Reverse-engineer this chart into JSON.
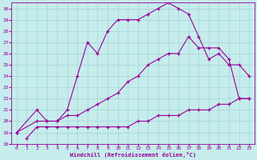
{
  "xlabel": "Windchill (Refroidissement éolien,°C)",
  "bg_color": "#c6ecec",
  "grid_color": "#a8d8d8",
  "line_color": "#990099",
  "xlim": [
    -0.5,
    23.5
  ],
  "ylim": [
    18,
    30.5
  ],
  "xticks": [
    0,
    1,
    2,
    3,
    4,
    5,
    6,
    7,
    8,
    9,
    10,
    11,
    12,
    13,
    14,
    15,
    16,
    17,
    18,
    19,
    20,
    21,
    22,
    23
  ],
  "yticks": [
    18,
    19,
    20,
    21,
    22,
    23,
    24,
    25,
    26,
    27,
    28,
    29,
    30
  ],
  "curve1_x": [
    0,
    2,
    3,
    4,
    5,
    6,
    7,
    8,
    9,
    10,
    11,
    12,
    13,
    14,
    15,
    16,
    17,
    18,
    19,
    20,
    21,
    22,
    23
  ],
  "curve1_y": [
    19.0,
    21.0,
    20.0,
    20.0,
    21.0,
    24.0,
    27.0,
    26.0,
    28.0,
    29.0,
    29.0,
    29.0,
    29.5,
    30.0,
    30.5,
    30.0,
    29.5,
    27.5,
    25.5,
    26.0,
    25.0,
    25.0,
    24.0
  ],
  "curve2_x": [
    0,
    2,
    3,
    4,
    5,
    6,
    7,
    8,
    9,
    10,
    11,
    12,
    13,
    14,
    15,
    16,
    17,
    18,
    19,
    20,
    21,
    22,
    23
  ],
  "curve2_y": [
    19.0,
    20.0,
    20.0,
    20.0,
    20.5,
    20.5,
    21.0,
    21.5,
    22.0,
    22.5,
    23.5,
    24.0,
    25.0,
    25.5,
    26.0,
    26.0,
    27.5,
    26.5,
    26.5,
    26.5,
    25.5,
    22.0,
    22.0
  ],
  "curve3_x": [
    1,
    2,
    3,
    4,
    5,
    6,
    7,
    8,
    9,
    10,
    11,
    12,
    13,
    14,
    15,
    16,
    17,
    18,
    19,
    20,
    21,
    22,
    23
  ],
  "curve3_y": [
    18.5,
    19.5,
    19.5,
    19.5,
    19.5,
    19.5,
    19.5,
    19.5,
    19.5,
    19.5,
    19.5,
    20.0,
    20.0,
    20.5,
    20.5,
    20.5,
    21.0,
    21.0,
    21.0,
    21.5,
    21.5,
    22.0,
    22.0
  ]
}
